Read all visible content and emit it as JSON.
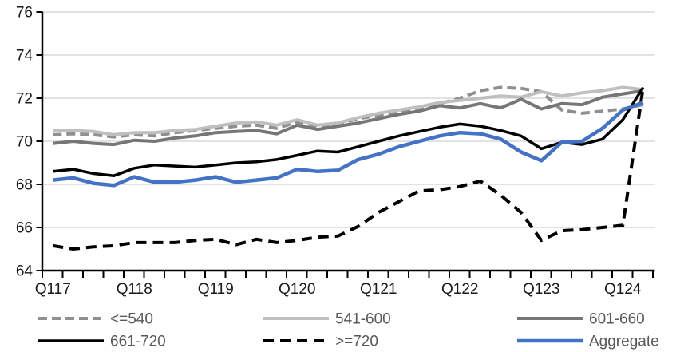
{
  "chart_data": {
    "type": "line",
    "title": "",
    "xlabel": "",
    "ylabel": "",
    "ylim": [
      64,
      76
    ],
    "ytick_step": 2,
    "grid": true,
    "legend_position": "bottom",
    "y_tick_labels": [
      "64",
      "66",
      "68",
      "70",
      "72",
      "74",
      "76"
    ],
    "x_tick_labels": [
      "Q117",
      "Q118",
      "Q119",
      "Q120",
      "Q121",
      "Q122",
      "Q123",
      "Q124"
    ],
    "categories": [
      "Q117",
      "Q217",
      "Q317",
      "Q417",
      "Q118",
      "Q218",
      "Q318",
      "Q418",
      "Q119",
      "Q219",
      "Q319",
      "Q419",
      "Q120",
      "Q220",
      "Q320",
      "Q420",
      "Q121",
      "Q221",
      "Q321",
      "Q421",
      "Q122",
      "Q222",
      "Q322",
      "Q422",
      "Q123",
      "Q223",
      "Q323",
      "Q423",
      "Q124",
      "Q224"
    ],
    "series": [
      {
        "name": "<=540",
        "color": "#8f8f8f",
        "dash": "dashed",
        "values": [
          70.3,
          70.35,
          70.3,
          70.2,
          70.3,
          70.25,
          70.4,
          70.5,
          70.6,
          70.7,
          70.75,
          70.6,
          70.9,
          70.7,
          70.8,
          71.05,
          71.2,
          71.35,
          71.55,
          71.75,
          72.0,
          72.35,
          72.5,
          72.45,
          72.3,
          71.45,
          71.3,
          71.4,
          71.5,
          71.7
        ]
      },
      {
        "name": "541-600",
        "color": "#bfbfbf",
        "dash": "solid",
        "values": [
          70.5,
          70.5,
          70.45,
          70.3,
          70.4,
          70.4,
          70.5,
          70.55,
          70.7,
          70.85,
          70.9,
          70.75,
          71.0,
          70.75,
          70.85,
          71.1,
          71.3,
          71.45,
          71.6,
          71.8,
          71.9,
          72.0,
          72.1,
          72.05,
          72.3,
          72.1,
          72.25,
          72.35,
          72.5,
          72.4
        ]
      },
      {
        "name": "601-660",
        "color": "#767676",
        "dash": "solid",
        "values": [
          69.9,
          70.0,
          69.9,
          69.85,
          70.05,
          70.0,
          70.15,
          70.25,
          70.4,
          70.45,
          70.5,
          70.35,
          70.75,
          70.55,
          70.7,
          70.85,
          71.05,
          71.25,
          71.4,
          71.65,
          71.55,
          71.75,
          71.55,
          71.95,
          71.5,
          71.75,
          71.7,
          72.05,
          72.2,
          72.35
        ]
      },
      {
        "name": "661-720",
        "color": "#000000",
        "dash": "solid",
        "values": [
          68.6,
          68.7,
          68.5,
          68.4,
          68.75,
          68.9,
          68.85,
          68.8,
          68.9,
          69.0,
          69.05,
          69.15,
          69.35,
          69.55,
          69.5,
          69.75,
          70.0,
          70.25,
          70.45,
          70.65,
          70.8,
          70.7,
          70.5,
          70.25,
          69.65,
          69.95,
          69.85,
          70.1,
          71.0,
          72.5
        ]
      },
      {
        "name": ">=720",
        "color": "#000000",
        "dash": "dashed",
        "values": [
          65.15,
          65.0,
          65.1,
          65.15,
          65.3,
          65.3,
          65.3,
          65.4,
          65.45,
          65.2,
          65.45,
          65.3,
          65.4,
          65.55,
          65.6,
          66.05,
          66.7,
          67.2,
          67.7,
          67.75,
          67.9,
          68.15,
          67.5,
          66.7,
          65.4,
          65.85,
          65.9,
          66.0,
          66.1,
          72.5
        ]
      },
      {
        "name": "Aggregate",
        "color": "#4472c4",
        "dash": "solid",
        "values": [
          68.2,
          68.3,
          68.05,
          67.95,
          68.35,
          68.1,
          68.1,
          68.2,
          68.35,
          68.1,
          68.2,
          68.3,
          68.7,
          68.6,
          68.65,
          69.15,
          69.4,
          69.75,
          70.0,
          70.25,
          70.4,
          70.35,
          70.1,
          69.5,
          69.1,
          69.95,
          70.0,
          70.6,
          71.45,
          71.8
        ]
      }
    ],
    "colors": {
      "grid": "#d9d9d9",
      "axis": "#000000",
      "legend_text": "#595959",
      "axis_text": "#1a1a1a",
      "accent_blue": "#4472c4"
    }
  }
}
